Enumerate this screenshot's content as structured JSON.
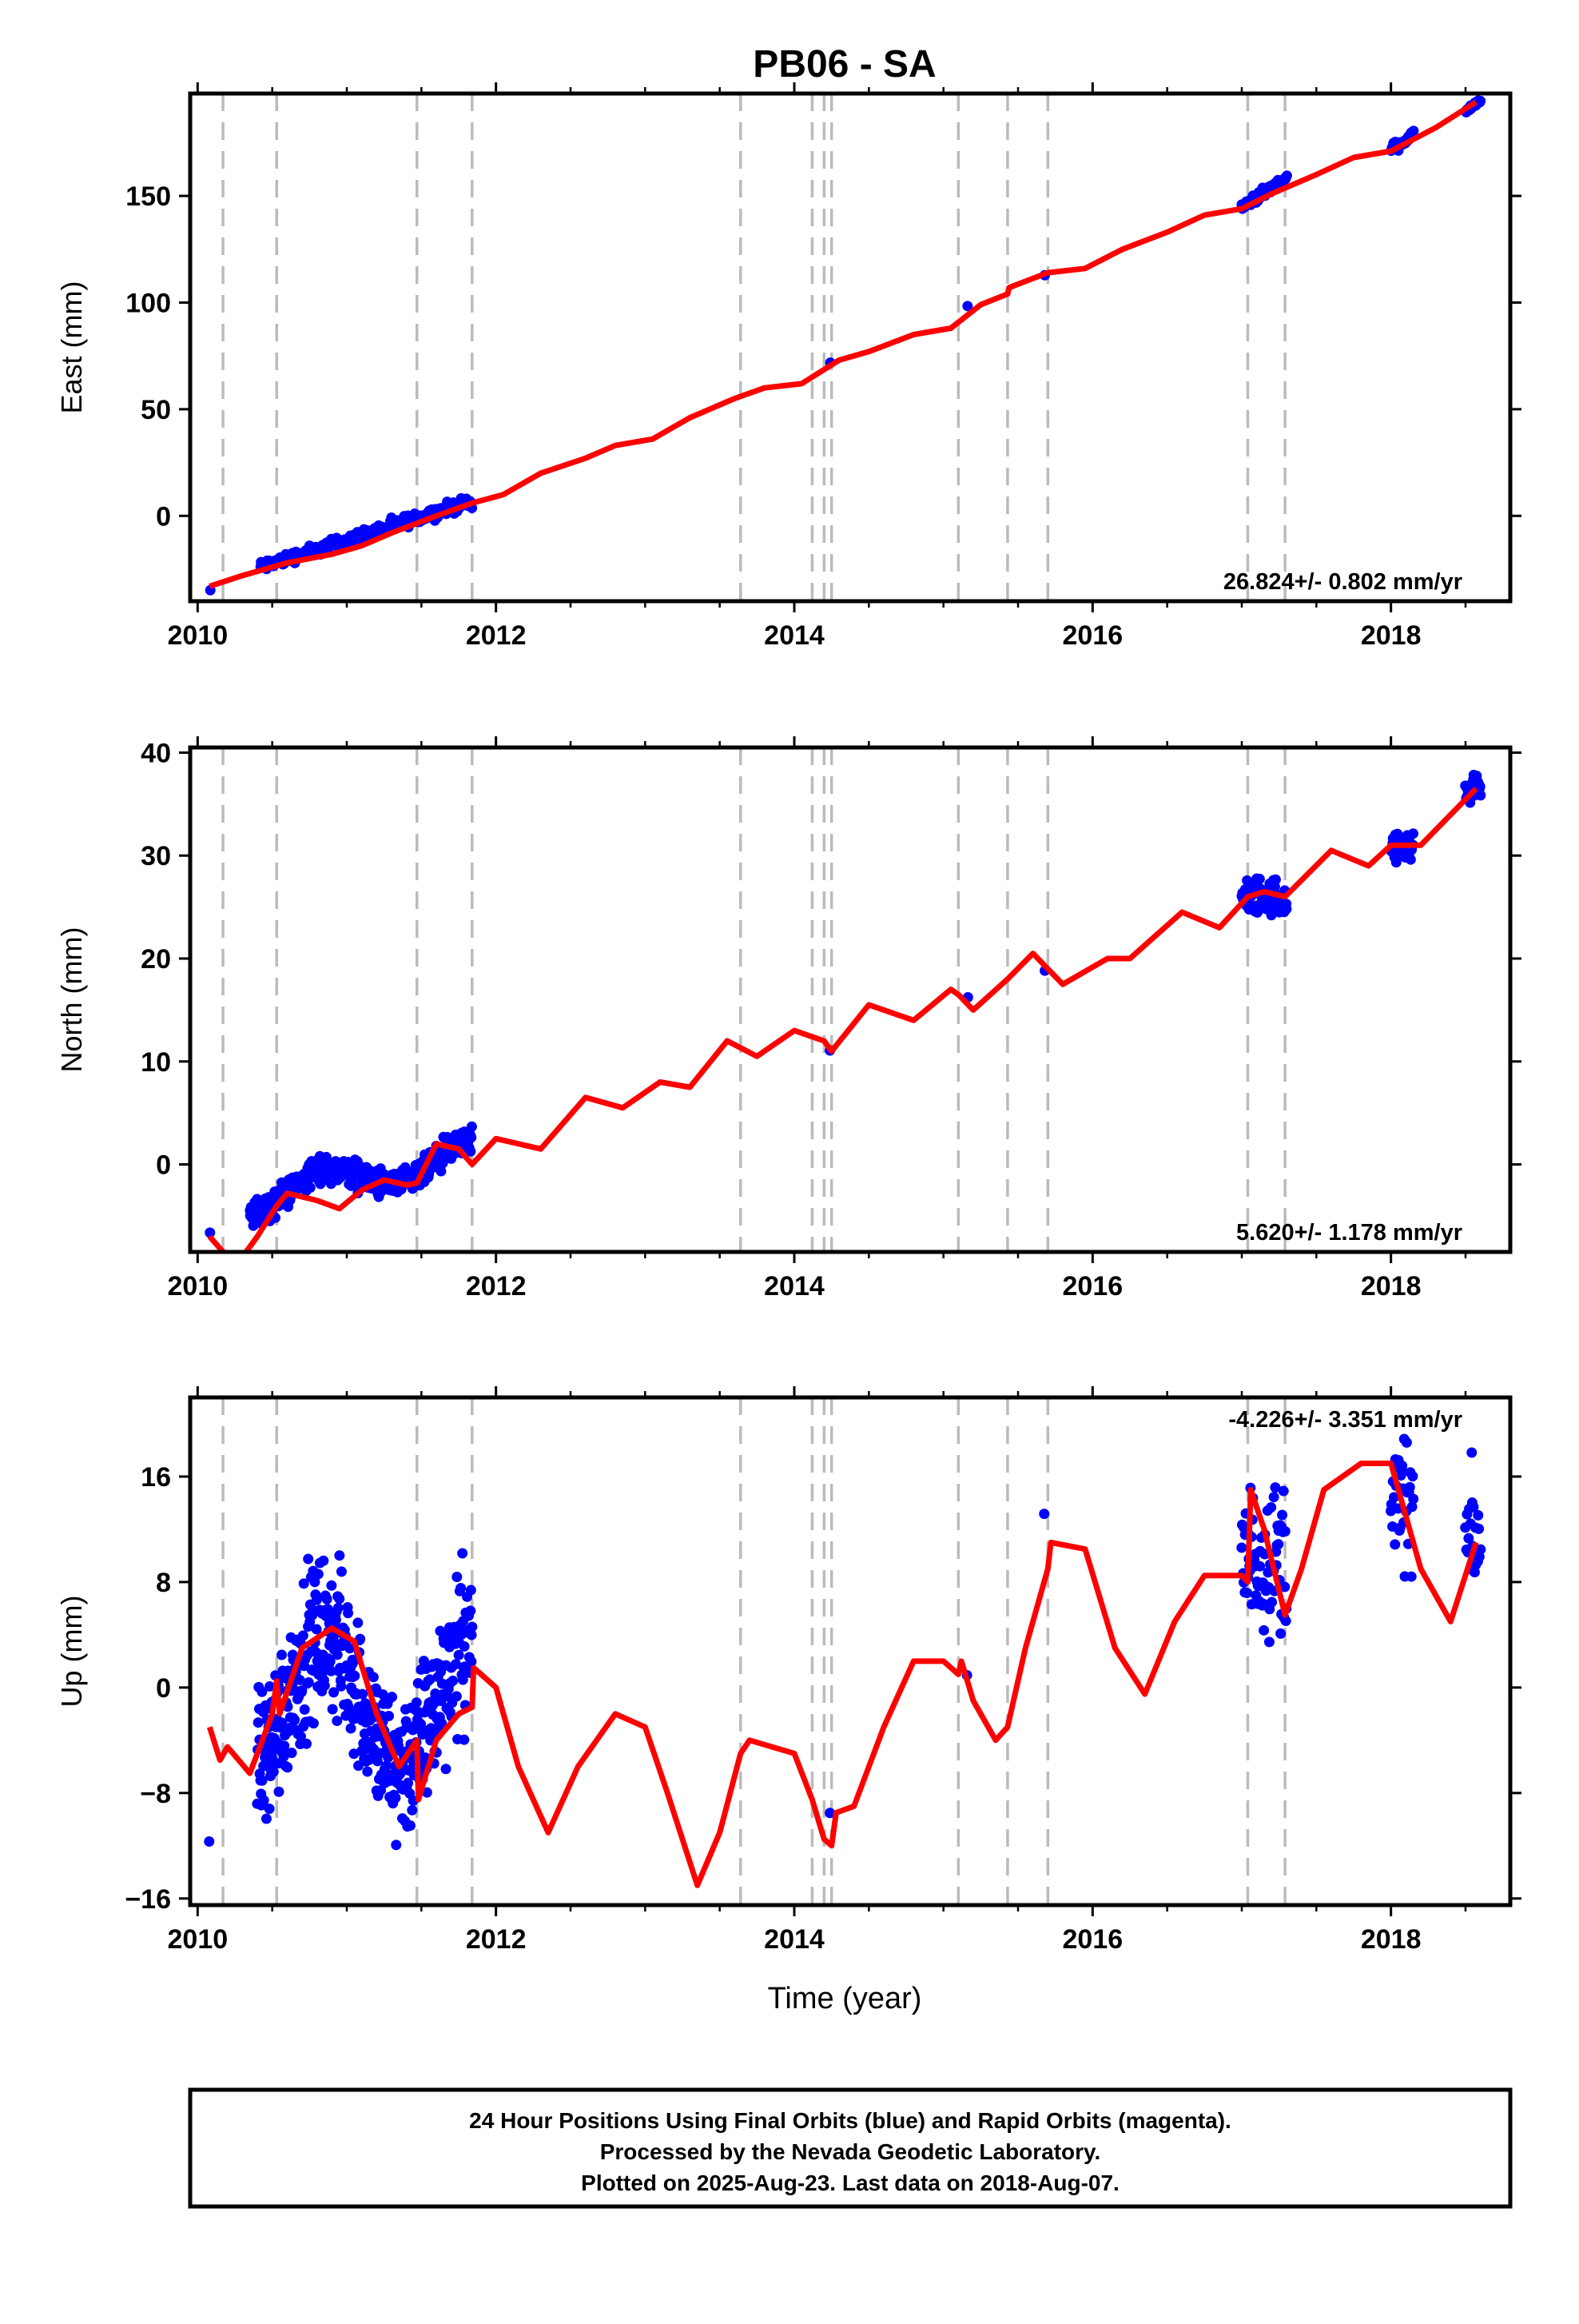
{
  "chart_data": {
    "type": "scatter",
    "title": "PB06 - SA",
    "xlabel": "Time (year)",
    "xlim": [
      2009.95,
      2018.8
    ],
    "x_ticks": [
      2010,
      2012,
      2014,
      2016,
      2018
    ],
    "x_tick_labels": [
      "2010",
      "2012",
      "2014",
      "2016",
      "2018"
    ],
    "offset_lines": [
      2010.17,
      2010.53,
      2011.47,
      2011.84,
      2013.64,
      2014.12,
      2014.2,
      2014.25,
      2015.1,
      2015.43,
      2015.7,
      2017.04,
      2017.29
    ],
    "colors": {
      "data": "#0000ff",
      "model": "#ff0000",
      "offsets": "#bbbbbb"
    },
    "panels": [
      {
        "name": "east",
        "ylabel": "East (mm)",
        "ylim": [
          -40,
          198
        ],
        "y_ticks": [
          0,
          50,
          100,
          150
        ],
        "y_tick_labels": [
          "0",
          "50",
          "100",
          "150"
        ],
        "rate_label": "26.824+/- 0.802 mm/yr",
        "model": [
          [
            2010.08,
            -33
          ],
          [
            2010.3,
            -28
          ],
          [
            2010.6,
            -22
          ],
          [
            2010.9,
            -18
          ],
          [
            2011.1,
            -14
          ],
          [
            2011.3,
            -8
          ],
          [
            2011.6,
            0
          ],
          [
            2011.84,
            6
          ],
          [
            2012.05,
            10
          ],
          [
            2012.3,
            20
          ],
          [
            2012.6,
            27
          ],
          [
            2012.8,
            33
          ],
          [
            2013.05,
            36
          ],
          [
            2013.3,
            46
          ],
          [
            2013.6,
            55
          ],
          [
            2013.8,
            60
          ],
          [
            2014.05,
            62
          ],
          [
            2014.3,
            73
          ],
          [
            2014.5,
            77
          ],
          [
            2014.8,
            85
          ],
          [
            2015.05,
            88
          ],
          [
            2015.25,
            99
          ],
          [
            2015.43,
            104
          ],
          [
            2015.44,
            107
          ],
          [
            2015.7,
            114
          ],
          [
            2015.95,
            116
          ],
          [
            2016.2,
            125
          ],
          [
            2016.5,
            133
          ],
          [
            2016.75,
            141
          ],
          [
            2017.0,
            144
          ],
          [
            2017.2,
            151
          ],
          [
            2017.5,
            160
          ],
          [
            2017.75,
            168
          ],
          [
            2018.0,
            171
          ],
          [
            2018.3,
            182
          ],
          [
            2018.57,
            194
          ]
        ],
        "clusters": [
          {
            "x0": 2010.08,
            "x1": 2010.08,
            "step": 0.01,
            "y0": -35,
            "y1": -33,
            "noise": 1.2,
            "amp": 0
          },
          {
            "x0": 2010.42,
            "x1": 2011.84,
            "step": 0.006,
            "y0": -24,
            "y1": 7,
            "noise": 2.0,
            "amp": 0
          },
          {
            "x0": 2014.24,
            "x1": 2014.28,
            "step": 0.01,
            "y0": 72,
            "y1": 74,
            "noise": 0.8,
            "amp": 0
          },
          {
            "x0": 2015.16,
            "x1": 2015.2,
            "step": 0.01,
            "y0": 98,
            "y1": 99,
            "noise": 0.8,
            "amp": 0
          },
          {
            "x0": 2015.68,
            "x1": 2015.72,
            "step": 0.01,
            "y0": 113,
            "y1": 116,
            "noise": 1,
            "amp": 0
          },
          {
            "x0": 2017.0,
            "x1": 2017.3,
            "step": 0.005,
            "y0": 145,
            "y1": 158,
            "noise": 1.5,
            "amp": 0
          },
          {
            "x0": 2018.0,
            "x1": 2018.15,
            "step": 0.006,
            "y0": 172,
            "y1": 178,
            "noise": 1.5,
            "amp": 0
          },
          {
            "x0": 2018.5,
            "x1": 2018.6,
            "step": 0.005,
            "y0": 190,
            "y1": 194,
            "noise": 1,
            "amp": 0
          }
        ]
      },
      {
        "name": "north",
        "ylabel": "North (mm)",
        "ylim": [
          -8.5,
          40.5
        ],
        "y_ticks": [
          0,
          10,
          20,
          30,
          40
        ],
        "y_tick_labels": [
          "0",
          "10",
          "20",
          "30",
          "40"
        ],
        "rate_label": "5.620+/- 1.178 mm/yr",
        "model": [
          [
            2010.08,
            -7
          ],
          [
            2010.17,
            -8.5
          ],
          [
            2010.3,
            -9
          ],
          [
            2010.4,
            -7
          ],
          [
            2010.53,
            -4
          ],
          [
            2010.6,
            -2.8
          ],
          [
            2010.8,
            -3.5
          ],
          [
            2010.95,
            -4.3
          ],
          [
            2011.1,
            -2.5
          ],
          [
            2011.25,
            -1.5
          ],
          [
            2011.4,
            -2
          ],
          [
            2011.47,
            -1.8
          ],
          [
            2011.6,
            2
          ],
          [
            2011.75,
            1.5
          ],
          [
            2011.84,
            0
          ],
          [
            2012.0,
            2.5
          ],
          [
            2012.3,
            1.5
          ],
          [
            2012.6,
            6.5
          ],
          [
            2012.85,
            5.5
          ],
          [
            2013.1,
            8
          ],
          [
            2013.3,
            7.5
          ],
          [
            2013.55,
            12
          ],
          [
            2013.75,
            10.5
          ],
          [
            2014.0,
            13
          ],
          [
            2014.2,
            12
          ],
          [
            2014.25,
            11
          ],
          [
            2014.5,
            15.5
          ],
          [
            2014.8,
            14
          ],
          [
            2015.05,
            17
          ],
          [
            2015.1,
            16.5
          ],
          [
            2015.2,
            15
          ],
          [
            2015.43,
            18
          ],
          [
            2015.6,
            20.5
          ],
          [
            2015.7,
            19
          ],
          [
            2015.8,
            17.5
          ],
          [
            2016.1,
            20
          ],
          [
            2016.25,
            20
          ],
          [
            2016.6,
            24.5
          ],
          [
            2016.85,
            23
          ],
          [
            2017.04,
            26
          ],
          [
            2017.15,
            26.5
          ],
          [
            2017.29,
            26
          ],
          [
            2017.6,
            30.5
          ],
          [
            2017.85,
            29
          ],
          [
            2018.0,
            31
          ],
          [
            2018.2,
            31
          ],
          [
            2018.57,
            36.5
          ]
        ],
        "clusters": [
          {
            "x0": 2010.08,
            "x1": 2010.1,
            "step": 0.01,
            "y0": -7,
            "y1": -7.5,
            "noise": 0.5,
            "amp": 0
          },
          {
            "x0": 2010.35,
            "x1": 2011.84,
            "step": 0.004,
            "y0": -3.5,
            "y1": 1,
            "noise": 1.0,
            "amp": 1.5
          },
          {
            "x0": 2014.24,
            "x1": 2014.28,
            "step": 0.01,
            "y0": 10.8,
            "y1": 11.2,
            "noise": 0.5,
            "amp": 0
          },
          {
            "x0": 2015.16,
            "x1": 2015.2,
            "step": 0.01,
            "y0": 15.5,
            "y1": 16,
            "noise": 0.5,
            "amp": 0
          },
          {
            "x0": 2015.68,
            "x1": 2015.72,
            "step": 0.01,
            "y0": 19,
            "y1": 19,
            "noise": 0.5,
            "amp": 0
          },
          {
            "x0": 2017.0,
            "x1": 2017.3,
            "step": 0.004,
            "y0": 26,
            "y1": 26,
            "noise": 1.3,
            "amp": 0
          },
          {
            "x0": 2018.0,
            "x1": 2018.15,
            "step": 0.005,
            "y0": 30.5,
            "y1": 31,
            "noise": 1.0,
            "amp": 0
          },
          {
            "x0": 2018.5,
            "x1": 2018.6,
            "step": 0.004,
            "y0": 36,
            "y1": 37,
            "noise": 1.0,
            "amp": 0
          }
        ]
      },
      {
        "name": "up",
        "ylabel": "Up (mm)",
        "ylim": [
          -16.5,
          22
        ],
        "y_ticks": [
          -16,
          -8,
          0,
          8,
          16
        ],
        "y_tick_labels": [
          "−16",
          "−8",
          "0",
          "8",
          "16"
        ],
        "rate_label": "-4.226+/- 3.351 mm/yr",
        "model": [
          [
            2010.08,
            -3
          ],
          [
            2010.15,
            -5.5
          ],
          [
            2010.2,
            -4.5
          ],
          [
            2010.35,
            -6.5
          ],
          [
            2010.5,
            -2
          ],
          [
            2010.53,
            0.5
          ],
          [
            2010.55,
            -2
          ],
          [
            2010.7,
            3
          ],
          [
            2010.9,
            4.5
          ],
          [
            2011.05,
            3.5
          ],
          [
            2011.2,
            -2
          ],
          [
            2011.35,
            -6
          ],
          [
            2011.47,
            -4
          ],
          [
            2011.48,
            -8.5
          ],
          [
            2011.6,
            -4
          ],
          [
            2011.75,
            -2
          ],
          [
            2011.84,
            -1.5
          ],
          [
            2011.85,
            1.5
          ],
          [
            2012.0,
            0
          ],
          [
            2012.15,
            -6
          ],
          [
            2012.35,
            -11
          ],
          [
            2012.55,
            -6
          ],
          [
            2012.8,
            -2
          ],
          [
            2013.0,
            -3
          ],
          [
            2013.15,
            -8
          ],
          [
            2013.35,
            -15
          ],
          [
            2013.5,
            -11
          ],
          [
            2013.64,
            -5
          ],
          [
            2013.7,
            -4
          ],
          [
            2014.0,
            -5
          ],
          [
            2014.12,
            -8.5
          ],
          [
            2014.2,
            -11.5
          ],
          [
            2014.25,
            -12
          ],
          [
            2014.28,
            -9.5
          ],
          [
            2014.4,
            -9
          ],
          [
            2014.6,
            -3
          ],
          [
            2014.8,
            2
          ],
          [
            2015.0,
            2
          ],
          [
            2015.1,
            1
          ],
          [
            2015.12,
            2
          ],
          [
            2015.2,
            -1
          ],
          [
            2015.35,
            -4
          ],
          [
            2015.43,
            -3
          ],
          [
            2015.55,
            3
          ],
          [
            2015.7,
            9
          ],
          [
            2015.72,
            11
          ],
          [
            2015.95,
            10.5
          ],
          [
            2016.15,
            3
          ],
          [
            2016.35,
            -0.5
          ],
          [
            2016.55,
            5
          ],
          [
            2016.75,
            8.5
          ],
          [
            2017.0,
            8.5
          ],
          [
            2017.04,
            8
          ],
          [
            2017.06,
            15
          ],
          [
            2017.15,
            12
          ],
          [
            2017.29,
            5.5
          ],
          [
            2017.4,
            9
          ],
          [
            2017.55,
            15
          ],
          [
            2017.8,
            17
          ],
          [
            2018.0,
            17
          ],
          [
            2018.2,
            9
          ],
          [
            2018.4,
            5
          ],
          [
            2018.57,
            11
          ]
        ],
        "clusters": [
          {
            "x0": 2010.08,
            "x1": 2010.1,
            "step": 0.01,
            "y0": -4,
            "y1": -4,
            "noise": 5,
            "amp": 0
          },
          {
            "x0": 2010.4,
            "x1": 2011.84,
            "step": 0.003,
            "y0": -1,
            "y1": -1,
            "noise": 4.0,
            "amp": 5.0
          },
          {
            "x0": 2014.24,
            "x1": 2014.28,
            "step": 0.01,
            "y0": -10,
            "y1": -10,
            "noise": 1.5,
            "amp": 0
          },
          {
            "x0": 2015.16,
            "x1": 2015.2,
            "step": 0.01,
            "y0": 0,
            "y1": 0,
            "noise": 2,
            "amp": 0
          },
          {
            "x0": 2015.68,
            "x1": 2015.72,
            "step": 0.01,
            "y0": 9,
            "y1": 9,
            "noise": 3,
            "amp": 0
          },
          {
            "x0": 2017.0,
            "x1": 2017.3,
            "step": 0.004,
            "y0": 10,
            "y1": 10,
            "noise": 4.0,
            "amp": 0
          },
          {
            "x0": 2018.0,
            "x1": 2018.15,
            "step": 0.005,
            "y0": 14,
            "y1": 14,
            "noise": 3.5,
            "amp": 0
          },
          {
            "x0": 2018.5,
            "x1": 2018.6,
            "step": 0.005,
            "y0": 11,
            "y1": 11,
            "noise": 3.5,
            "amp": 0
          }
        ]
      }
    ]
  },
  "footer": {
    "line1": "24 Hour Positions Using Final Orbits (blue) and Rapid Orbits (magenta).",
    "line2": "Processed by the Nevada Geodetic Laboratory.",
    "line3": "Plotted on 2025-Aug-23. Last data on 2018-Aug-07."
  }
}
